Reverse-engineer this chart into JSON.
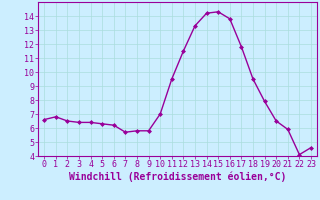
{
  "x": [
    0,
    1,
    2,
    3,
    4,
    5,
    6,
    7,
    8,
    9,
    10,
    11,
    12,
    13,
    14,
    15,
    16,
    17,
    18,
    19,
    20,
    21,
    22,
    23
  ],
  "y": [
    6.6,
    6.8,
    6.5,
    6.4,
    6.4,
    6.3,
    6.2,
    5.7,
    5.8,
    5.8,
    7.0,
    9.5,
    11.5,
    13.3,
    14.2,
    14.3,
    13.8,
    11.8,
    9.5,
    7.9,
    6.5,
    5.9,
    4.1,
    4.6
  ],
  "line_color": "#990099",
  "marker": "D",
  "marker_size": 2,
  "linewidth": 1.0,
  "xlabel": "Windchill (Refroidissement éolien,°C)",
  "xlabel_fontsize": 7,
  "xlim": [
    -0.5,
    23.5
  ],
  "ylim": [
    4,
    15.0
  ],
  "yticks": [
    4,
    5,
    6,
    7,
    8,
    9,
    10,
    11,
    12,
    13,
    14
  ],
  "xticks": [
    0,
    1,
    2,
    3,
    4,
    5,
    6,
    7,
    8,
    9,
    10,
    11,
    12,
    13,
    14,
    15,
    16,
    17,
    18,
    19,
    20,
    21,
    22,
    23
  ],
  "grid_color": "#aadddd",
  "background_color": "#cceeff",
  "tick_fontsize": 6,
  "tick_color": "#990099",
  "label_color": "#990099",
  "spine_color": "#990099"
}
